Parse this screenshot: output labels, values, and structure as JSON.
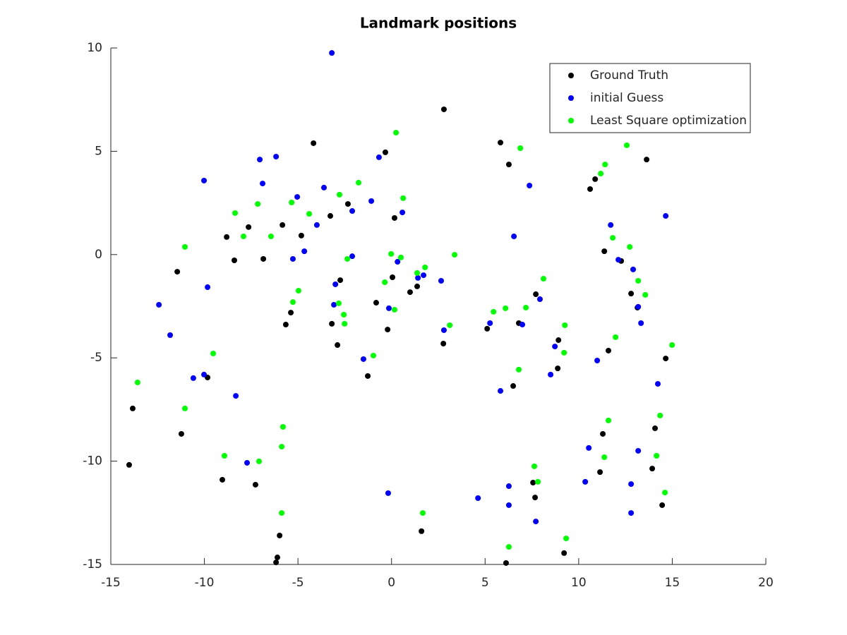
{
  "chart_data": {
    "type": "scatter",
    "title": "Landmark positions",
    "xlim": [
      -15,
      20
    ],
    "ylim": [
      -15,
      10
    ],
    "xticks": [
      -15,
      -10,
      -5,
      0,
      5,
      10,
      15,
      20
    ],
    "yticks": [
      -15,
      -10,
      -5,
      0,
      5,
      10
    ],
    "grid": false,
    "legend": "upper right",
    "series": [
      {
        "name": "Ground Truth",
        "color": "#000000",
        "x": [
          -4.17,
          -0.33,
          2.8,
          5.82,
          6.27,
          13.63,
          10.61,
          10.88,
          -2.33,
          -3.27,
          -5.83,
          -4.82,
          -7.64,
          -8.81,
          -8.4,
          -6.85,
          -11.45,
          0.16,
          11.37,
          12.27,
          -2.74,
          0.05,
          1.37,
          0.99,
          -0.82,
          -5.38,
          -5.65,
          -3.19,
          -2.89,
          -0.21,
          2.77,
          5.11,
          6.8,
          7.71,
          12.8,
          13.14,
          11.59,
          14.65,
          8.92,
          8.88,
          6.5,
          -1.27,
          -9.83,
          -13.83,
          -11.23,
          -14.02,
          -9.04,
          -7.27,
          -5.98,
          -6.1,
          -6.17,
          1.6,
          6.12,
          7.56,
          7.67,
          9.22,
          11.29,
          11.14,
          14.08,
          13.93,
          14.46
        ],
        "y": [
          5.39,
          4.95,
          7.03,
          5.42,
          4.36,
          4.6,
          3.17,
          3.65,
          2.45,
          1.87,
          1.43,
          0.92,
          1.33,
          0.85,
          -0.28,
          -0.21,
          -0.83,
          1.77,
          0.16,
          -0.31,
          -1.24,
          -1.1,
          -1.54,
          -1.82,
          -2.33,
          -2.81,
          -3.39,
          -3.35,
          -4.38,
          -3.63,
          -4.31,
          -3.59,
          -3.32,
          -1.92,
          -1.89,
          -2.57,
          -4.65,
          -5.03,
          -4.14,
          -5.51,
          -6.36,
          -5.88,
          -5.95,
          -7.45,
          -8.68,
          -10.18,
          -10.9,
          -11.14,
          -13.6,
          -14.66,
          -14.9,
          -13.39,
          -14.93,
          -11.04,
          -11.76,
          -14.45,
          -8.68,
          -10.53,
          -8.41,
          -10.36,
          -12.13
        ]
      },
      {
        "name": "initial Guess",
        "color": "#0000ff",
        "x": [
          -3.19,
          -7.04,
          -6.17,
          -6.89,
          -10.02,
          -3.61,
          -5.04,
          -0.67,
          -1.08,
          -2.1,
          0.58,
          -3.99,
          -4.66,
          -5.27,
          -2.1,
          7.37,
          11.71,
          14.65,
          6.54,
          12.12,
          12.91,
          -12.43,
          -9.83,
          -3.0,
          -3.08,
          0.32,
          -0.14,
          1.41,
          1.71,
          2.65,
          2.8,
          5.26,
          6.99,
          7.93,
          13.18,
          13.33,
          8.73,
          10.99,
          -11.83,
          -10.59,
          -10.02,
          -8.32,
          -1.5,
          5.82,
          8.5,
          14.23,
          -7.72,
          -0.18,
          4.62,
          6.27,
          6.27,
          7.71,
          10.54,
          10.35,
          13.18,
          12.8,
          12.8
        ],
        "y": [
          9.76,
          4.6,
          4.74,
          3.44,
          3.58,
          3.24,
          2.79,
          4.71,
          2.59,
          2.11,
          2.04,
          1.43,
          0.16,
          -0.21,
          -0.08,
          3.34,
          1.43,
          1.87,
          0.88,
          -0.25,
          -0.72,
          -2.43,
          -1.58,
          -1.44,
          -2.43,
          -0.35,
          -2.6,
          -1.13,
          -1.0,
          -1.27,
          -3.66,
          -3.32,
          -3.39,
          -2.16,
          -2.53,
          -3.32,
          -4.45,
          -5.13,
          -3.9,
          -5.98,
          -5.81,
          -6.84,
          -5.06,
          -6.6,
          -5.81,
          -6.26,
          -10.08,
          -11.55,
          -11.79,
          -11.21,
          -12.13,
          -12.92,
          -9.36,
          -11.0,
          -9.5,
          -11.11,
          -12.51
        ]
      },
      {
        "name": "Least Square optimization",
        "color": "#00ff00",
        "x": [
          0.24,
          6.88,
          12.57,
          11.41,
          11.18,
          -1.76,
          -2.78,
          0.62,
          -5.34,
          -4.4,
          -7.15,
          -8.36,
          -7.91,
          -6.44,
          -11.04,
          -0.02,
          0.5,
          3.37,
          -2.36,
          11.82,
          12.73,
          1.37,
          1.79,
          8.12,
          13.18,
          13.56,
          -0.36,
          -4.97,
          -5.27,
          -2.82,
          -2.55,
          -2.51,
          0.16,
          6.09,
          7.18,
          5.45,
          3.11,
          9.26,
          11.97,
          14.99,
          9.22,
          6.8,
          -0.97,
          -9.53,
          -13.57,
          -11.04,
          -5.8,
          -5.87,
          -8.93,
          -7.08,
          -5.87,
          1.67,
          11.59,
          11.37,
          14.35,
          14.16,
          14.61,
          7.63,
          7.82,
          6.27,
          9.33
        ],
        "y": [
          5.9,
          5.15,
          5.29,
          4.36,
          3.92,
          3.48,
          2.9,
          2.73,
          2.52,
          1.97,
          2.45,
          2.01,
          0.88,
          0.88,
          0.37,
          0.03,
          -0.14,
          -0.01,
          -0.21,
          0.81,
          0.37,
          -0.89,
          -0.62,
          -1.17,
          -1.27,
          -1.95,
          -1.34,
          -1.75,
          -2.3,
          -2.36,
          -2.91,
          -3.35,
          -2.67,
          -2.6,
          -2.57,
          -2.77,
          -3.42,
          -3.42,
          -4.0,
          -4.38,
          -4.75,
          -5.57,
          -4.89,
          -4.79,
          -6.19,
          -7.45,
          -8.34,
          -9.3,
          -9.74,
          -10.01,
          -12.51,
          -12.51,
          -8.03,
          -9.81,
          -7.79,
          -9.74,
          -11.52,
          -10.25,
          -11.0,
          -14.15,
          -13.74
        ]
      }
    ]
  }
}
